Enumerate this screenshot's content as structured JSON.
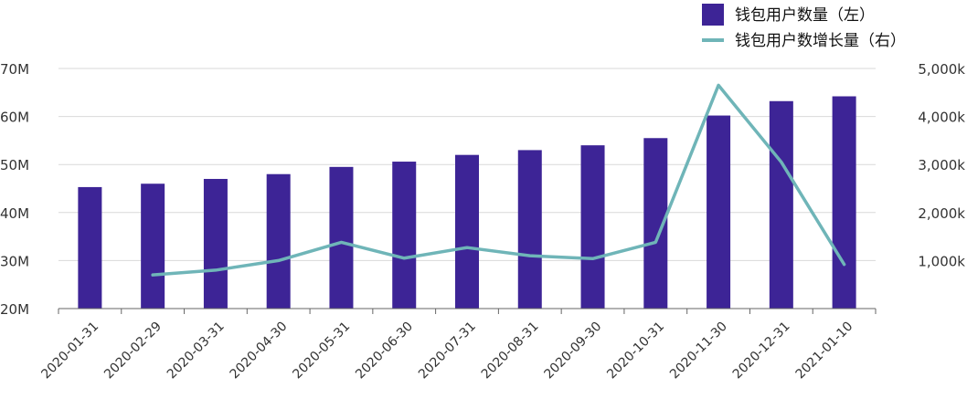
{
  "chart_data": {
    "type": "bar",
    "categories": [
      "2020-01-31",
      "2020-02-29",
      "2020-03-31",
      "2020-04-30",
      "2020-05-31",
      "2020-06-30",
      "2020-07-31",
      "2020-08-31",
      "2020-09-30",
      "2020-10-31",
      "2020-11-30",
      "2020-12-31",
      "2021-01-10"
    ],
    "series": [
      {
        "name": "钱包用户数量（左）",
        "type": "bar",
        "axis": "left",
        "color": "#3d2496",
        "values": [
          45.3,
          46.0,
          47.0,
          48.0,
          49.5,
          50.6,
          52.0,
          53.0,
          54.0,
          55.5,
          60.2,
          63.2,
          64.2
        ]
      },
      {
        "name": "钱包用户数增长量（右）",
        "type": "line",
        "axis": "right",
        "color": "#6fb5b8",
        "values": [
          null,
          700,
          800,
          1000,
          1380,
          1050,
          1270,
          1100,
          1040,
          1380,
          4650,
          3050,
          920
        ]
      }
    ],
    "y_left": {
      "ticks": [
        "70M",
        "60M",
        "50M",
        "40M",
        "30M",
        "20M"
      ],
      "min": 20,
      "max": 70
    },
    "y_right": {
      "ticks": [
        "5,000k",
        "4,000k",
        "3,000k",
        "2,000k",
        "1,000k"
      ],
      "min": 0,
      "max": 5000
    },
    "legend_position": "top-right",
    "grid": true
  }
}
